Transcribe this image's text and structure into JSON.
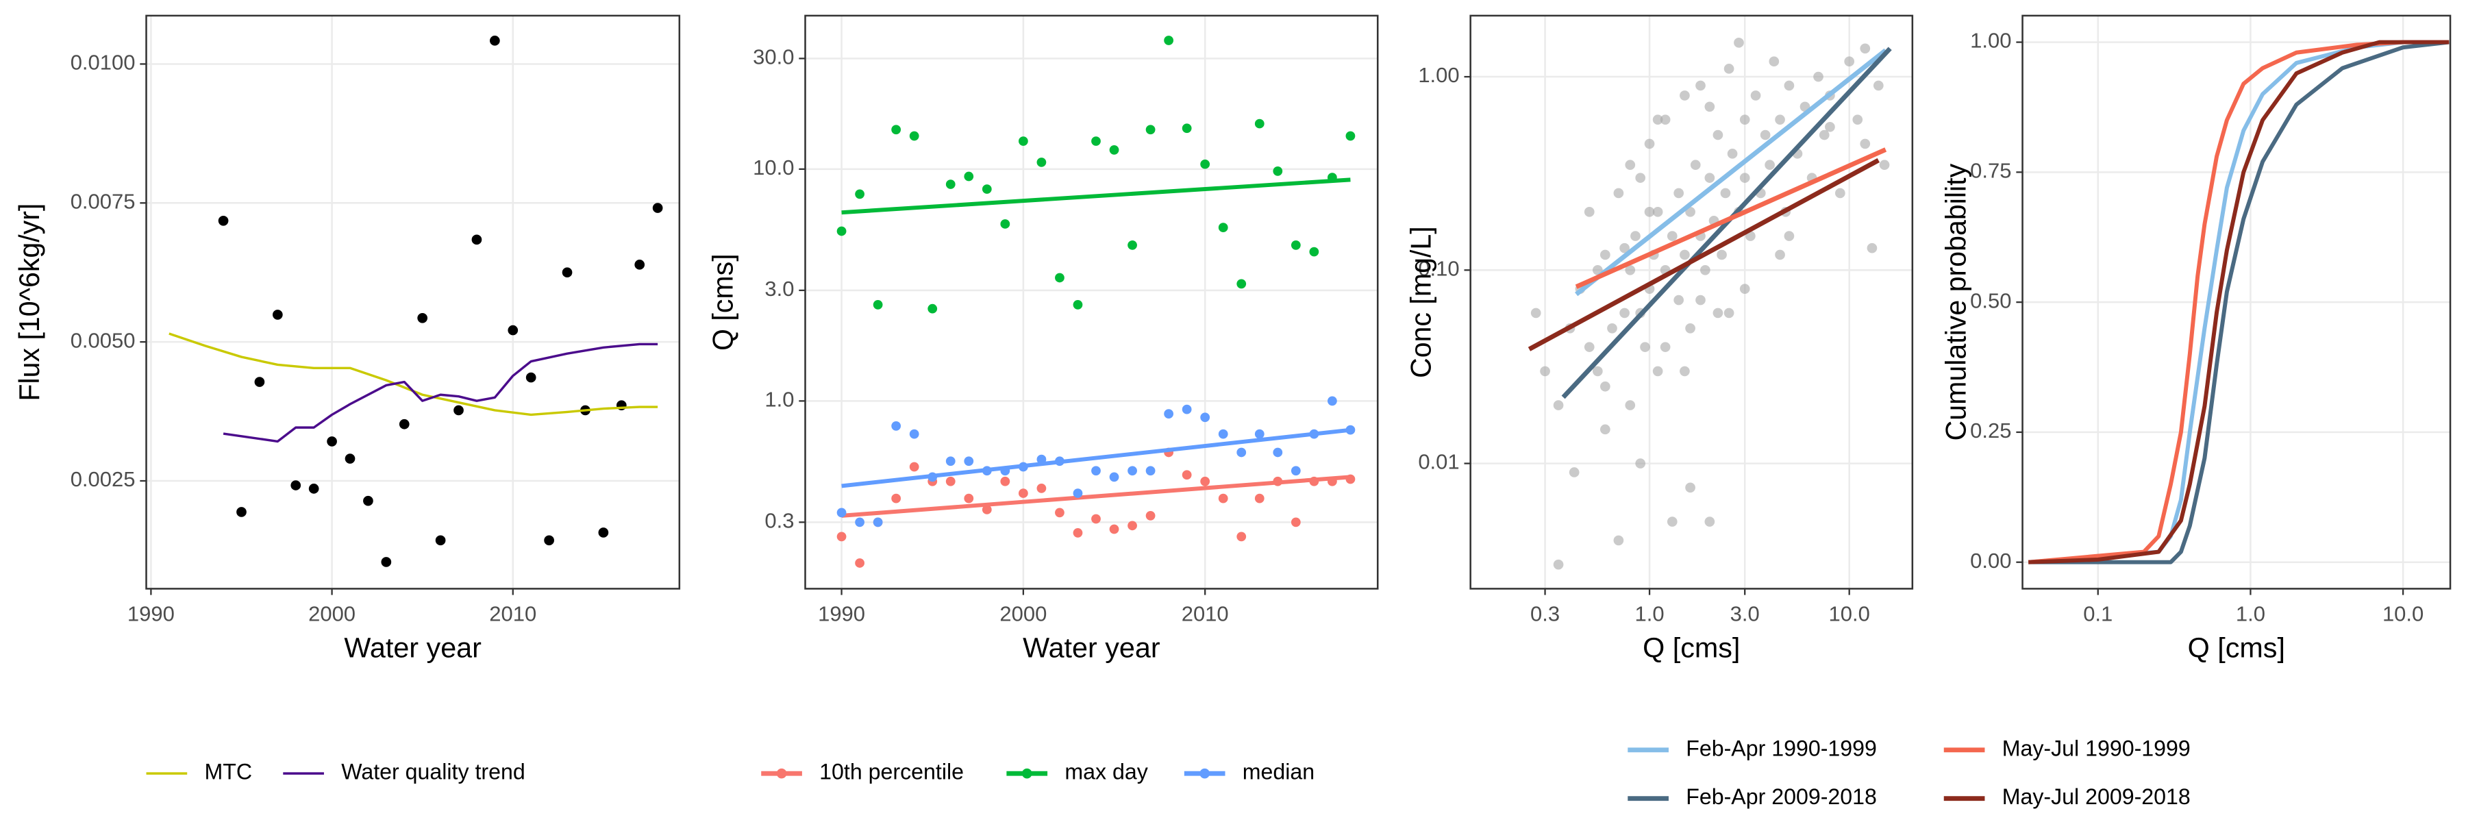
{
  "chart_data": [
    {
      "type": "line",
      "x_label": "Water year",
      "y_label": "Flux [10^6kg/yr]",
      "xlim": [
        1989.74,
        2019.2
      ],
      "xticks": [
        1990,
        2000,
        2010
      ],
      "ylim": [
        0.00056,
        0.01087
      ],
      "yticks": [
        0.0025,
        {
          "value": 0.005,
          "label": "0.0050"
        },
        {
          "value": 0.0075,
          "label": "0.0075"
        },
        {
          "value": 0.01,
          "label": "0.0100"
        }
      ],
      "grid": true,
      "legend": "bottom",
      "points": {
        "color": "#000000",
        "opacity": 1,
        "x": [
          1994,
          1995,
          1996,
          1997,
          1998,
          1999,
          2000,
          2001,
          2002,
          2003,
          2004,
          2005,
          2006,
          2007,
          2008,
          2009,
          2010,
          2011,
          2012,
          2013,
          2014,
          2015,
          2016,
          2017,
          2018
        ],
        "values": [
          0.00718,
          0.00194,
          0.00428,
          0.00549,
          0.00242,
          0.00236,
          0.00321,
          0.0029,
          0.00214,
          0.00104,
          0.00352,
          0.00543,
          0.00143,
          0.00377,
          0.00684,
          0.01042,
          0.00521,
          0.00436,
          0.00143,
          0.00625,
          0.00377,
          0.00157,
          0.00386,
          0.00639,
          0.00741
        ]
      },
      "series": [
        {
          "name": "MTC",
          "color": "#c9c900",
          "x": [
            1991,
            1993,
            1995,
            1997,
            1999,
            2001,
            2003,
            2005,
            2007,
            2009,
            2011,
            2013,
            2015,
            2017,
            2018
          ],
          "values": [
            0.00515,
            0.00493,
            0.00473,
            0.00459,
            0.00453,
            0.00453,
            0.00431,
            0.00405,
            0.00391,
            0.00377,
            0.00369,
            0.00374,
            0.0038,
            0.00383,
            0.00383
          ]
        },
        {
          "name": "Water quality trend",
          "color": "#4b0c8c",
          "x": [
            1994,
            1997,
            1998,
            1999,
            2000,
            2001,
            2003,
            2004,
            2005,
            2006,
            2007,
            2008,
            2009,
            2010,
            2011,
            2013,
            2015,
            2017,
            2018
          ],
          "values": [
            0.00335,
            0.00321,
            0.00346,
            0.00346,
            0.00369,
            0.00388,
            0.00422,
            0.00428,
            0.00394,
            0.00405,
            0.00402,
            0.00394,
            0.004,
            0.00439,
            0.00465,
            0.00479,
            0.0049,
            0.00496,
            0.00496
          ]
        }
      ]
    },
    {
      "type": "scatter",
      "x_label": "Water year",
      "y_label": "Q [cms]",
      "xlim": [
        1988.0,
        2019.5
      ],
      "xticks": [
        1990,
        2000,
        2010
      ],
      "ylog": true,
      "ylim": [
        0.155,
        45.9
      ],
      "yticks": [
        0.3,
        {
          "value": 1,
          "label": "1.0"
        },
        {
          "value": 3,
          "label": "3.0"
        },
        {
          "value": 10,
          "label": "10.0"
        },
        {
          "value": 30,
          "label": "30.0"
        }
      ],
      "grid": true,
      "legend": "bottom",
      "series": [
        {
          "name": "10th percentile",
          "color": "#f8766d",
          "x": [
            1990,
            1991,
            1992,
            1993,
            1994,
            1995,
            1996,
            1997,
            1998,
            1999,
            2000,
            2001,
            2002,
            2003,
            2004,
            2005,
            2006,
            2007,
            2008,
            2009,
            2010,
            2011,
            2012,
            2013,
            2014,
            2015,
            2016,
            2017,
            2018
          ],
          "values": [
            0.26,
            0.2,
            0.3,
            0.38,
            0.52,
            0.45,
            0.45,
            0.38,
            0.34,
            0.45,
            0.4,
            0.42,
            0.33,
            0.27,
            0.31,
            0.28,
            0.29,
            0.32,
            0.6,
            0.48,
            0.45,
            0.38,
            0.26,
            0.38,
            0.45,
            0.3,
            0.45,
            0.45,
            0.46
          ],
          "trend": [
            0.32,
            0.47
          ]
        },
        {
          "name": "max day",
          "color": "#00ba38",
          "x": [
            1990,
            1991,
            1992,
            1993,
            1994,
            1995,
            1996,
            1997,
            1998,
            1999,
            2000,
            2001,
            2002,
            2003,
            2004,
            2005,
            2006,
            2007,
            2008,
            2009,
            2010,
            2011,
            2012,
            2013,
            2014,
            2015,
            2016,
            2017,
            2018
          ],
          "values": [
            5.4,
            7.8,
            2.6,
            14.8,
            13.9,
            2.5,
            8.6,
            9.3,
            8.2,
            5.8,
            13.2,
            10.7,
            3.4,
            2.6,
            13.2,
            12.1,
            4.7,
            14.8,
            35.9,
            15.0,
            10.5,
            5.6,
            3.2,
            15.7,
            9.8,
            4.7,
            4.4,
            9.2,
            13.9
          ],
          "trend": [
            6.5,
            9.0
          ]
        },
        {
          "name": "median",
          "color": "#619cff",
          "x": [
            1990,
            1991,
            1992,
            1993,
            1994,
            1995,
            1996,
            1997,
            1998,
            1999,
            2000,
            2001,
            2002,
            2003,
            2004,
            2005,
            2006,
            2007,
            2008,
            2009,
            2010,
            2011,
            2012,
            2013,
            2014,
            2015,
            2016,
            2017,
            2018
          ],
          "values": [
            0.33,
            0.3,
            0.3,
            0.78,
            0.72,
            0.47,
            0.55,
            0.55,
            0.5,
            0.5,
            0.52,
            0.56,
            0.55,
            0.4,
            0.5,
            0.47,
            0.5,
            0.5,
            0.88,
            0.92,
            0.85,
            0.72,
            0.6,
            0.72,
            0.6,
            0.5,
            0.72,
            1.0,
            0.75
          ],
          "trend": [
            0.43,
            0.75
          ]
        }
      ]
    },
    {
      "type": "line",
      "x_label": "Q [cms]",
      "y_label": "Conc [mg/L]",
      "xlog": true,
      "xlim": [
        0.127,
        20.7
      ],
      "xticks": [
        0.3,
        {
          "value": 1,
          "label": "1.0"
        },
        {
          "value": 3,
          "label": "3.0"
        },
        {
          "value": 10,
          "label": "10.0"
        }
      ],
      "ylog": true,
      "ylim": [
        0.00225,
        2.07
      ],
      "yticks": [
        0.01,
        {
          "value": 0.1,
          "label": "0.10"
        },
        {
          "value": 1,
          "label": "1.00"
        }
      ],
      "grid": true,
      "legend": "bottom",
      "points": {
        "color": "#a6a6a6",
        "opacity": 0.6,
        "x": [
          0.27,
          0.3,
          0.35,
          0.4,
          0.42,
          0.45,
          0.5,
          0.5,
          0.55,
          0.6,
          0.6,
          0.65,
          0.7,
          0.7,
          0.75,
          0.8,
          0.8,
          0.85,
          0.9,
          0.9,
          0.95,
          1.0,
          1.0,
          1.05,
          1.1,
          1.1,
          1.2,
          1.2,
          1.3,
          1.3,
          1.4,
          1.4,
          1.5,
          1.5,
          1.6,
          1.6,
          1.7,
          1.8,
          1.8,
          1.9,
          2.0,
          2.0,
          2.1,
          2.2,
          2.3,
          2.4,
          2.5,
          2.5,
          2.6,
          2.8,
          3.0,
          3.0,
          3.2,
          3.4,
          3.6,
          3.8,
          4.0,
          4.2,
          4.5,
          4.8,
          5.0,
          5.5,
          6.0,
          6.5,
          7.0,
          7.5,
          8.0,
          9.0,
          10.0,
          11.0,
          12.0,
          13.0,
          14.0,
          15.0,
          0.35,
          0.6,
          0.9,
          1.2,
          1.6,
          2.2,
          3.0,
          4.5,
          0.55,
          0.8,
          1.1,
          1.5,
          2.0,
          2.8,
          5.0,
          8.0,
          12.0,
          0.75,
          1.0,
          1.8
        ],
        "values": [
          0.06,
          0.03,
          0.003,
          0.05,
          0.009,
          0.08,
          0.04,
          0.2,
          0.03,
          0.12,
          0.015,
          0.05,
          0.004,
          0.25,
          0.06,
          0.1,
          0.02,
          0.15,
          0.06,
          0.3,
          0.04,
          0.08,
          0.45,
          0.12,
          0.03,
          0.2,
          0.1,
          0.6,
          0.005,
          0.15,
          0.25,
          0.07,
          0.12,
          0.8,
          0.2,
          0.05,
          0.35,
          0.15,
          0.9,
          0.1,
          0.3,
          0.005,
          0.18,
          0.5,
          0.12,
          0.25,
          1.1,
          0.06,
          0.4,
          0.2,
          0.3,
          0.6,
          0.15,
          0.8,
          0.25,
          0.5,
          0.35,
          1.2,
          0.6,
          0.2,
          0.9,
          0.4,
          0.7,
          0.3,
          1.0,
          0.5,
          0.8,
          0.25,
          1.2,
          0.6,
          1.4,
          0.13,
          0.9,
          0.35,
          0.02,
          0.025,
          0.01,
          0.04,
          0.0075,
          0.06,
          0.08,
          0.12,
          0.1,
          0.35,
          0.6,
          0.03,
          0.7,
          1.5,
          0.15,
          0.55,
          0.45,
          0.13,
          0.2,
          0.07
        ]
      },
      "series": [
        {
          "name": "Feb-Apr 1990-1999",
          "color": "#85bde8",
          "x": [
            0.43,
            15.2
          ],
          "values": [
            0.075,
            1.37
          ]
        },
        {
          "name": "Feb-Apr 2009-2018",
          "color": "#4a6a82",
          "x": [
            0.37,
            16
          ],
          "values": [
            0.022,
            1.4
          ]
        },
        {
          "name": "May-Jul 1990-1999",
          "color": "#f4674e",
          "x": [
            0.43,
            15.2
          ],
          "values": [
            0.082,
            0.42
          ]
        },
        {
          "name": "May-Jul 2009-2018",
          "color": "#8c2a1c",
          "x": [
            0.25,
            14
          ],
          "values": [
            0.039,
            0.37
          ]
        }
      ]
    },
    {
      "type": "step",
      "x_label": "Q [cms]",
      "y_label": "Cumulative probability",
      "xlog": true,
      "xlim": [
        0.032,
        20.4
      ],
      "xticks": [
        0.1,
        {
          "value": 1,
          "label": "1.0"
        },
        {
          "value": 10,
          "label": "10.0"
        }
      ],
      "ylim": [
        -0.051,
        1.051
      ],
      "yticks": [
        {
          "value": 0,
          "label": "0.00"
        },
        0.25,
        {
          "value": 0.5,
          "label": "0.50"
        },
        0.75,
        {
          "value": 1,
          "label": "1.00"
        }
      ],
      "grid": true,
      "series": [
        {
          "color": "#85bde8",
          "x": [
            0.035,
            0.25,
            0.3,
            0.35,
            0.4,
            0.5,
            0.6,
            0.7,
            0.9,
            1.2,
            2,
            5,
            10,
            20
          ],
          "values": [
            0,
            0.02,
            0.05,
            0.12,
            0.25,
            0.45,
            0.6,
            0.72,
            0.83,
            0.9,
            0.96,
            0.99,
            1,
            1
          ]
        },
        {
          "color": "#4a6a82",
          "x": [
            0.035,
            0.3,
            0.35,
            0.4,
            0.5,
            0.6,
            0.7,
            0.9,
            1.2,
            2,
            4,
            10,
            20
          ],
          "values": [
            0,
            0,
            0.02,
            0.07,
            0.2,
            0.38,
            0.52,
            0.66,
            0.77,
            0.88,
            0.95,
            0.99,
            1
          ]
        },
        {
          "color": "#f4674e",
          "x": [
            0.035,
            0.2,
            0.25,
            0.3,
            0.35,
            0.4,
            0.45,
            0.5,
            0.6,
            0.7,
            0.9,
            1.2,
            2,
            5,
            10,
            20
          ],
          "values": [
            0,
            0.02,
            0.05,
            0.15,
            0.25,
            0.4,
            0.55,
            0.65,
            0.78,
            0.85,
            0.92,
            0.95,
            0.98,
            0.995,
            1,
            1
          ]
        },
        {
          "color": "#8c2a1c",
          "x": [
            0.035,
            0.1,
            0.25,
            0.35,
            0.4,
            0.5,
            0.6,
            0.7,
            0.9,
            1.2,
            2,
            4,
            7,
            20
          ],
          "values": [
            0,
            0.005,
            0.02,
            0.08,
            0.15,
            0.3,
            0.48,
            0.6,
            0.75,
            0.85,
            0.94,
            0.98,
            1,
            1
          ]
        }
      ]
    }
  ]
}
